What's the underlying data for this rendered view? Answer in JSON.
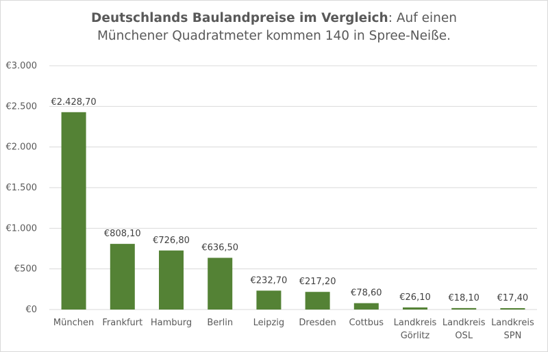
{
  "chart_data": {
    "type": "bar",
    "title_bold": "Deutschlands Baulandpreise im Vergleich",
    "title_rest": ": Auf einen",
    "title_line2": "Münchener Quadratmeter kommen 140 in Spree-Neiße.",
    "categories": [
      [
        "München"
      ],
      [
        "Frankfurt"
      ],
      [
        "Hamburg"
      ],
      [
        "Berlin"
      ],
      [
        "Leipzig"
      ],
      [
        "Dresden"
      ],
      [
        "Cottbus"
      ],
      [
        "Landkreis",
        "Görlitz"
      ],
      [
        "Landkreis",
        "OSL"
      ],
      [
        "Landkreis",
        "SPN"
      ]
    ],
    "values": [
      2428.7,
      808.1,
      726.8,
      636.5,
      232.7,
      217.2,
      78.6,
      26.1,
      18.1,
      17.4
    ],
    "data_labels": [
      "€2.428,70",
      "€808,10",
      "€726,80",
      "€636,50",
      "€232,70",
      "€217,20",
      "€78,60",
      "€26,10",
      "€18,10",
      "€17,40"
    ],
    "ylim": [
      0,
      3000
    ],
    "yticks": [
      0,
      500,
      1000,
      1500,
      2000,
      2500,
      3000
    ],
    "ytick_labels": [
      "€0",
      "€500",
      "€1.000",
      "€1.500",
      "€2.000",
      "€2.500",
      "€3.000"
    ],
    "grid": true,
    "legend": "none",
    "bar_color": "#548235",
    "grid_color": "#d9d9d9"
  }
}
